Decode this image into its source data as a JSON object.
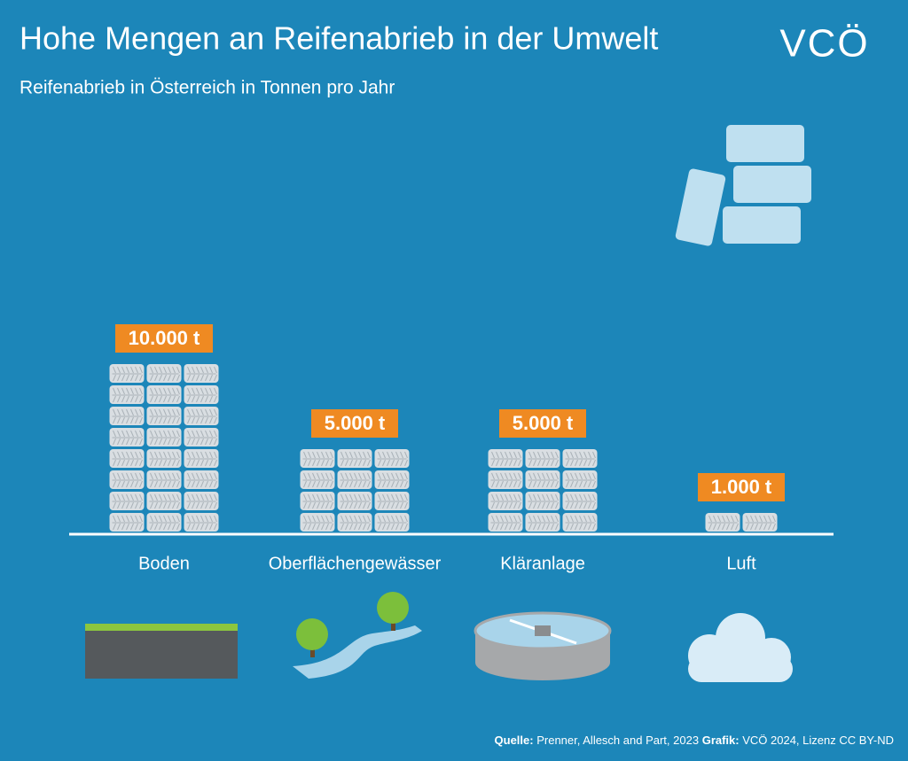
{
  "chart_data": {
    "type": "bar",
    "title": "Hohe Mengen an Reifenabrieb in der Umwelt",
    "subtitle": "Reifenabrieb in Österreich in Tonnen pro Jahr",
    "logo": "VCÖ",
    "categories": [
      "Boden",
      "Oberflächengewässer",
      "Kläranlage",
      "Luft"
    ],
    "values": [
      10000,
      5000,
      5000,
      1000
    ],
    "value_labels": [
      "10.000 t",
      "5.000 t",
      "5.000 t",
      "1.000 t"
    ],
    "color": "#d9dee2",
    "label_color": "#ef8a22",
    "source": {
      "label1": "Quelle:",
      "text1": "Prenner, Allesch and Part, 2023",
      "label2": "Grafik:",
      "text2": "VCÖ 2024, Lizenz CC BY-ND"
    }
  }
}
